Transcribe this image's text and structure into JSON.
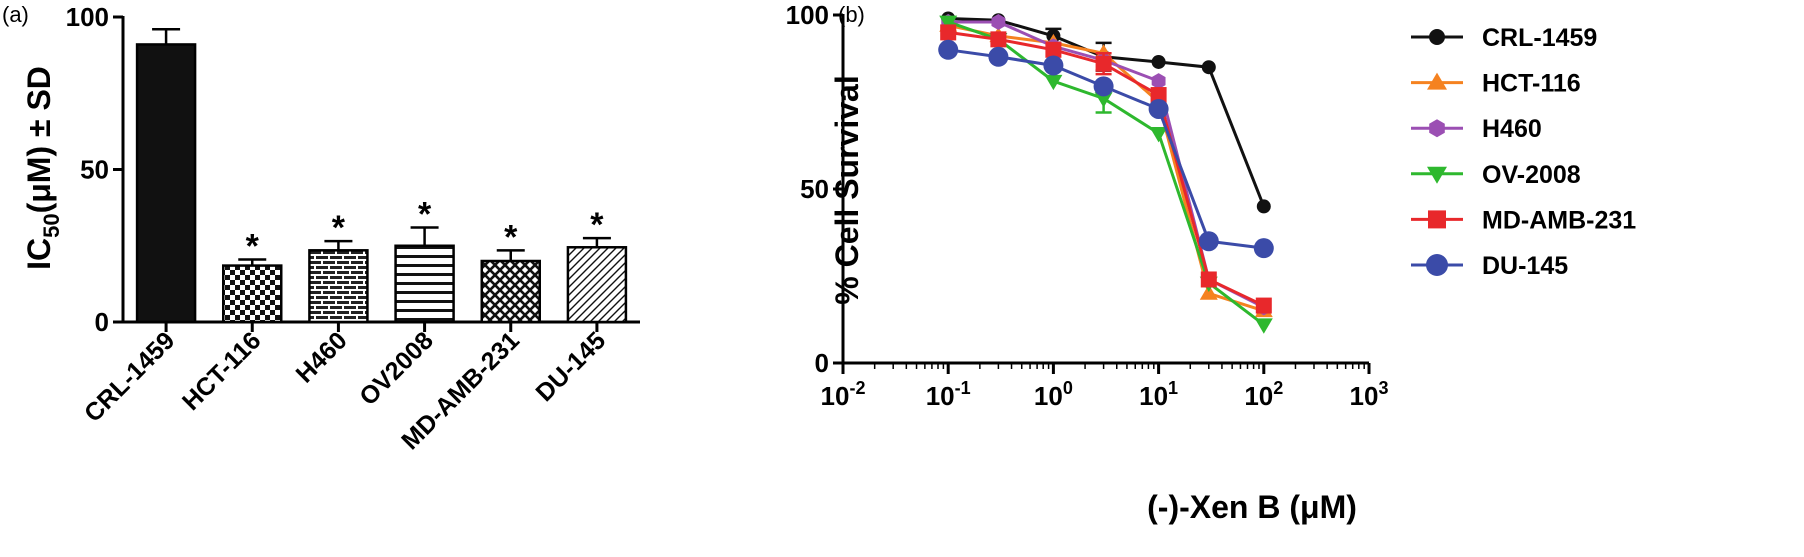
{
  "panel_a": {
    "label": "(a)",
    "ylabel_main": "IC",
    "ylabel_sub": "50",
    "ylabel_rest": "(μM) ± SD",
    "significance_marker": "*"
  },
  "panel_b": {
    "label": "(b)",
    "ylabel": "% Cell Survival",
    "xlabel": "(-)-Xen B (μM)"
  },
  "chart_data": [
    {
      "type": "bar",
      "panel": "(a)",
      "categories": [
        "CRL-1459",
        "HCT-116",
        "H460",
        "OV2008",
        "MD-AMB-231",
        "DU-145"
      ],
      "values": [
        91,
        18.5,
        23.5,
        25,
        20,
        24.5
      ],
      "errors": [
        5,
        2,
        3,
        6,
        3.5,
        3
      ],
      "significant": [
        false,
        true,
        true,
        true,
        true,
        true
      ],
      "fills": [
        "solid",
        "checker",
        "brick",
        "hlines",
        "crosshatch",
        "diagonal"
      ],
      "ylim": [
        0,
        100
      ],
      "yticks": [
        0,
        50,
        100
      ],
      "xlabel": "",
      "ylabel": "IC50(μM) ± SD"
    },
    {
      "type": "line",
      "panel": "(b)",
      "xscale": "log",
      "xlim": [
        0.01,
        1000
      ],
      "xticks": [
        {
          "value": 0.01,
          "base": "10",
          "exp": "-2"
        },
        {
          "value": 0.1,
          "base": "10",
          "exp": "-1"
        },
        {
          "value": 1,
          "base": "10",
          "exp": "0"
        },
        {
          "value": 10,
          "base": "10",
          "exp": "1"
        },
        {
          "value": 100,
          "base": "10",
          "exp": "2"
        },
        {
          "value": 1000,
          "base": "10",
          "exp": "3"
        }
      ],
      "ylim": [
        0,
        100
      ],
      "yticks": [
        0,
        50,
        100
      ],
      "xlabel": "(-)-Xen B (μM)",
      "ylabel": "% Cell Survival",
      "legend_position": "right",
      "x": [
        0.1,
        0.3,
        1,
        3,
        10,
        30,
        100
      ],
      "series": [
        {
          "name": "CRL-1459",
          "color": "#111111",
          "marker": "circle-small",
          "values": [
            99,
            98.5,
            94,
            88,
            86.5,
            85,
            45
          ],
          "errors": [
            0,
            0,
            2,
            4,
            0,
            0,
            0
          ]
        },
        {
          "name": "HCT-116",
          "color": "#F58220",
          "marker": "triangle-up",
          "values": [
            97,
            94,
            92,
            89,
            75,
            20,
            15
          ],
          "errors": [
            0,
            0,
            0,
            0,
            0,
            0,
            0
          ]
        },
        {
          "name": "H460",
          "color": "#9B4FB3",
          "marker": "hexagon",
          "values": [
            98,
            98,
            91,
            87,
            81,
            24,
            16
          ],
          "errors": [
            0,
            0,
            0,
            0,
            0,
            0,
            0
          ]
        },
        {
          "name": "OV-2008",
          "color": "#2EB82E",
          "marker": "triangle-down",
          "values": [
            98,
            93,
            81,
            76,
            66,
            23,
            11
          ],
          "errors": [
            0,
            0,
            0,
            4,
            0,
            0,
            0
          ]
        },
        {
          "name": "MD-AMB-231",
          "color": "#E8282B",
          "marker": "square",
          "values": [
            95,
            93,
            90,
            86,
            77,
            24,
            16.5
          ],
          "errors": [
            0,
            0,
            0,
            3,
            0,
            0,
            0
          ]
        },
        {
          "name": "DU-145",
          "color": "#3B4BA8",
          "marker": "circle",
          "values": [
            90,
            88,
            85.5,
            79.5,
            73,
            35,
            33
          ],
          "errors": [
            0,
            0,
            0,
            0,
            0,
            0,
            0
          ]
        }
      ]
    }
  ]
}
